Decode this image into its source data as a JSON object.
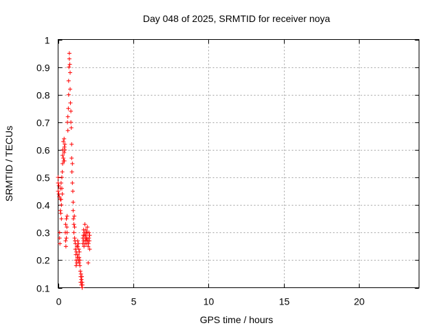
{
  "chart_data": {
    "type": "scatter",
    "title": "Day 048 of 2025, SRMTID for receiver noya",
    "xlabel": "GPS time / hours",
    "ylabel": "SRMTID / TECUs",
    "xlim": [
      0,
      24
    ],
    "ylim": [
      0.1,
      1.0
    ],
    "xticks": [
      0,
      5,
      10,
      15,
      20
    ],
    "yticks": [
      0.1,
      0.2,
      0.3,
      0.4,
      0.5,
      0.6,
      0.7,
      0.8,
      0.9,
      1.0
    ],
    "ytick_labels": [
      "0.1",
      "0.2",
      "0.3",
      "0.4",
      "0.5",
      "0.6",
      "0.7",
      "0.8",
      "0.9",
      "1"
    ],
    "grid": true,
    "legend": "none",
    "marker": "+",
    "color": "#ff0000",
    "series": [
      {
        "name": "noya",
        "x": [
          0.0,
          0.0,
          0.0,
          0.05,
          0.05,
          0.08,
          0.1,
          0.1,
          0.12,
          0.15,
          0.15,
          0.15,
          0.18,
          0.2,
          0.2,
          0.22,
          0.22,
          0.25,
          0.25,
          0.28,
          0.28,
          0.3,
          0.3,
          0.32,
          0.35,
          0.35,
          0.38,
          0.4,
          0.4,
          0.42,
          0.42,
          0.45,
          0.45,
          0.48,
          0.5,
          0.5,
          0.52,
          0.55,
          0.55,
          0.58,
          0.6,
          0.6,
          0.62,
          0.65,
          0.65,
          0.68,
          0.7,
          0.7,
          0.72,
          0.75,
          0.75,
          0.78,
          0.8,
          0.8,
          0.82,
          0.85,
          0.85,
          0.88,
          0.9,
          0.9,
          0.92,
          0.95,
          0.95,
          0.98,
          1.0,
          1.0,
          1.02,
          1.05,
          1.05,
          1.08,
          1.1,
          1.1,
          1.12,
          1.15,
          1.15,
          1.18,
          1.2,
          1.2,
          1.22,
          1.25,
          1.25,
          1.28,
          1.3,
          1.3,
          1.32,
          1.35,
          1.35,
          1.38,
          1.4,
          1.4,
          1.42,
          1.45,
          1.45,
          1.48,
          1.5,
          1.5,
          1.52,
          1.55,
          1.55,
          1.58,
          1.6,
          1.6,
          1.62,
          1.65,
          1.65,
          1.68,
          1.7,
          1.7,
          1.72,
          1.75,
          1.75,
          1.78,
          1.8,
          1.8,
          1.82,
          1.85,
          1.85,
          1.88,
          1.9,
          1.9,
          1.92,
          1.95,
          1.95,
          1.98,
          2.0,
          2.0,
          2.02,
          2.05,
          2.05,
          2.08,
          2.1,
          2.1
        ],
        "y": [
          0.5,
          0.48,
          0.45,
          0.44,
          0.47,
          0.43,
          0.3,
          0.28,
          0.26,
          0.38,
          0.42,
          0.46,
          0.37,
          0.48,
          0.42,
          0.35,
          0.4,
          0.5,
          0.46,
          0.44,
          0.52,
          0.58,
          0.55,
          0.6,
          0.63,
          0.57,
          0.56,
          0.64,
          0.59,
          0.61,
          0.56,
          0.6,
          0.62,
          0.3,
          0.27,
          0.33,
          0.25,
          0.35,
          0.28,
          0.32,
          0.3,
          0.36,
          0.7,
          0.67,
          0.72,
          0.75,
          0.8,
          0.85,
          0.9,
          0.93,
          0.95,
          0.91,
          0.88,
          0.82,
          0.77,
          0.74,
          0.7,
          0.68,
          0.62,
          0.57,
          0.52,
          0.55,
          0.48,
          0.45,
          0.41,
          0.38,
          0.35,
          0.33,
          0.3,
          0.36,
          0.32,
          0.28,
          0.27,
          0.24,
          0.26,
          0.22,
          0.2,
          0.18,
          0.23,
          0.25,
          0.19,
          0.21,
          0.27,
          0.25,
          0.22,
          0.2,
          0.26,
          0.24,
          0.21,
          0.19,
          0.23,
          0.2,
          0.18,
          0.16,
          0.14,
          0.12,
          0.15,
          0.11,
          0.13,
          0.14,
          0.12,
          0.1,
          0.11,
          0.26,
          0.28,
          0.29,
          0.31,
          0.27,
          0.25,
          0.29,
          0.3,
          0.33,
          0.27,
          0.26,
          0.29,
          0.31,
          0.28,
          0.3,
          0.27,
          0.26,
          0.28,
          0.3,
          0.32,
          0.27,
          0.19,
          0.25,
          0.26,
          0.28,
          0.3,
          0.27,
          0.29,
          0.24
        ]
      }
    ]
  }
}
